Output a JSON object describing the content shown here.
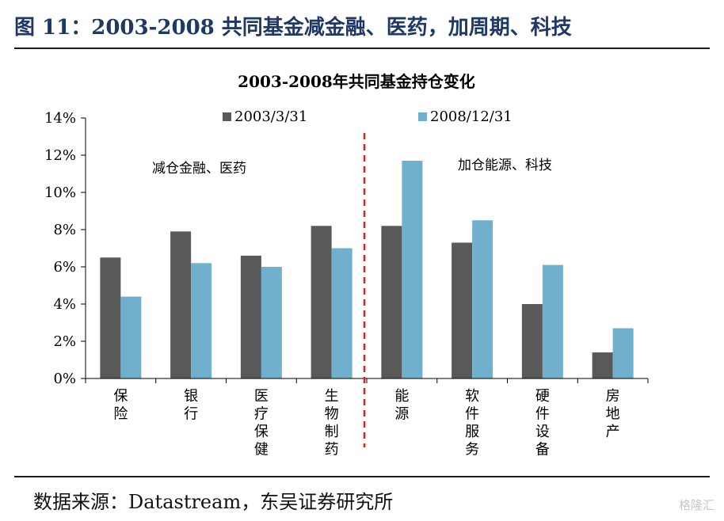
{
  "figure_title": "图 11：2003-2008 共同基金减金融、医药，加周期、科技",
  "source_note": "数据来源：Datastream，东吴证券研究所",
  "watermark": "格隆汇",
  "colors": {
    "series_2003": "#595959",
    "series_2008": "#70b0cd",
    "divider": "#e02020",
    "title": "#1f3864"
  },
  "chart_data": {
    "type": "bar",
    "title": "2003-2008年共同基金持仓变化",
    "categories": [
      "保险",
      "银行",
      "医疗保健",
      "生物制药",
      "能源",
      "软件服务",
      "硬件设备",
      "房地产"
    ],
    "series": [
      {
        "name": "2003/3/31",
        "values": [
          6.5,
          7.9,
          6.6,
          8.2,
          8.2,
          7.3,
          4.0,
          1.4
        ]
      },
      {
        "name": "2008/12/31",
        "values": [
          4.4,
          6.2,
          6.0,
          7.0,
          11.7,
          8.5,
          6.1,
          2.7
        ]
      }
    ],
    "ylim": [
      0,
      14
    ],
    "yticks": [
      "0%",
      "2%",
      "4%",
      "6%",
      "8%",
      "10%",
      "12%",
      "14%"
    ],
    "legend_position": "top",
    "annotations": [
      "减仓金融、医药",
      "加仓能源、科技"
    ],
    "xlabel": "",
    "ylabel": ""
  }
}
